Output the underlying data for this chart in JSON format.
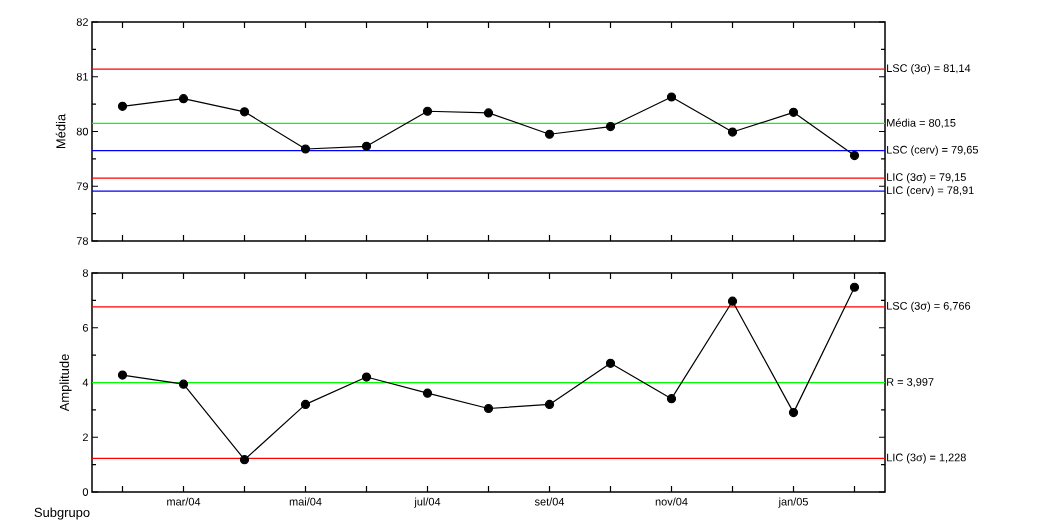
{
  "chart_data": [
    {
      "type": "line",
      "ylabel": "Média",
      "categories": [
        null,
        null,
        null,
        null,
        null,
        null,
        null,
        null,
        null,
        null,
        null,
        null,
        null
      ],
      "tick_labels": "y",
      "marker": "circle",
      "ylim": [
        78,
        82
      ],
      "yticks": [
        78,
        79,
        80,
        81,
        82
      ],
      "series": [
        {
          "color": "#000000",
          "values": [
            80.46,
            80.6,
            80.36,
            79.68,
            79.73,
            80.37,
            80.34,
            79.95,
            80.09,
            80.63,
            79.99,
            80.35,
            79.56
          ]
        }
      ],
      "ref_lines": [
        {
          "axis": "y",
          "value": 81.14,
          "label": "LSC (3σ) = 81,14",
          "color": "#ff0000"
        },
        {
          "axis": "y",
          "value": 80.15,
          "label": "Média = 80,15",
          "color": "#00ff00"
        },
        {
          "axis": "y",
          "value": 79.65,
          "label": "LSC (cerv) = 79,65",
          "color": "#0000ff"
        },
        {
          "axis": "y",
          "value": 79.15,
          "label": "LIC (3σ) = 79,15",
          "color": "#ff0000"
        },
        {
          "axis": "y",
          "value": 78.91,
          "label": "LIC (cerv) = 78,91",
          "color": "#0000ff"
        }
      ]
    },
    {
      "type": "line",
      "ylabel": "Amplitude",
      "xlabel": "Subgrupo",
      "categories": [
        null,
        "mar/04",
        null,
        "mai/04",
        null,
        "jul/04",
        null,
        "set/04",
        null,
        "nov/04",
        null,
        "jan/05",
        null
      ],
      "marker": "circle",
      "ylim": [
        0,
        8
      ],
      "yticks": [
        0,
        2,
        4,
        6,
        8
      ],
      "series": [
        {
          "color": "#000000",
          "values": [
            4.27,
            3.94,
            1.18,
            3.2,
            4.2,
            3.61,
            3.05,
            3.2,
            4.7,
            3.41,
            6.97,
            2.9,
            7.48
          ]
        }
      ],
      "ref_lines": [
        {
          "axis": "y",
          "value": 6.766,
          "label": "LSC (3σ) = 6,766",
          "color": "#ff0000"
        },
        {
          "axis": "y",
          "value": 3.997,
          "label": "R = 3,997",
          "color": "#00ff00"
        },
        {
          "axis": "y",
          "value": 1.228,
          "label": "LIC (3σ) = 1,228",
          "color": "#ff0000"
        }
      ]
    }
  ]
}
